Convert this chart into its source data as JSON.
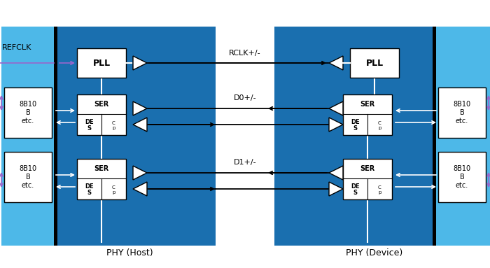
{
  "bg_color": "#ffffff",
  "light_blue": "#4db8e8",
  "mid_blue": "#1a6faf",
  "white": "#ffffff",
  "black": "#000000",
  "purple": "#9966cc",
  "title_host": "PHY (Host)",
  "title_device": "PHY (Device)",
  "refclk_label": "REFCLK",
  "rclk_label": "RCLK+/-",
  "d0_label": "D0+/-",
  "d1_label": "D1+/-"
}
